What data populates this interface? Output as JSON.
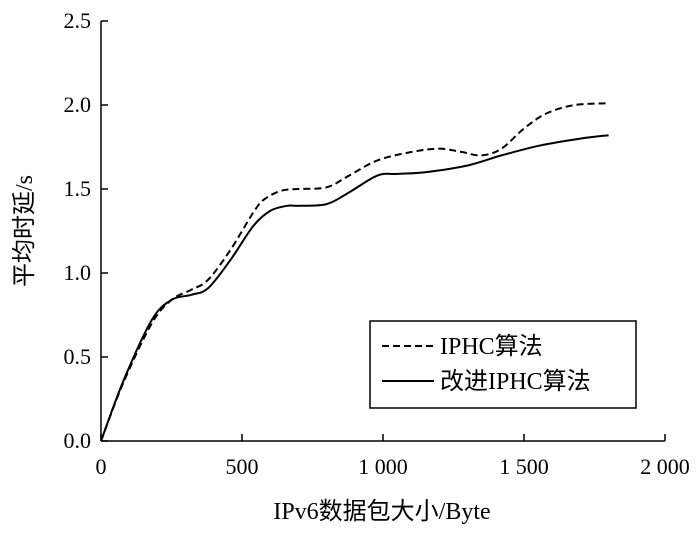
{
  "chart_data": {
    "type": "line",
    "xlabel": "IPv6数据包大小/Byte",
    "ylabel": "平均时延/s",
    "xlim": [
      0,
      2000
    ],
    "ylim": [
      0,
      2.5
    ],
    "x_ticks": [
      0,
      500,
      1000,
      1500,
      2000
    ],
    "x_tick_labels": [
      "0",
      "500",
      "1 000",
      "1 500",
      "2 000"
    ],
    "y_ticks": [
      0,
      0.5,
      1.0,
      1.5,
      2.0,
      2.5
    ],
    "y_tick_labels": [
      "0.0",
      "0.5",
      "1.0",
      "1.5",
      "2.0",
      "2.5"
    ],
    "grid": false,
    "legend_position": "bottom-right",
    "series": [
      {
        "name": "IPHC算法",
        "style": "dashed",
        "color": "#000000",
        "x": [
          0,
          80,
          180,
          250,
          320,
          380,
          460,
          540,
          580,
          640,
          700,
          800,
          880,
          980,
          1100,
          1200,
          1280,
          1350,
          1420,
          1500,
          1580,
          1680,
          1800
        ],
        "y": [
          0.0,
          0.35,
          0.7,
          0.84,
          0.9,
          0.96,
          1.14,
          1.36,
          1.44,
          1.49,
          1.5,
          1.51,
          1.58,
          1.67,
          1.72,
          1.74,
          1.72,
          1.7,
          1.74,
          1.86,
          1.95,
          2.0,
          2.01
        ]
      },
      {
        "name": "改进IPHC算法",
        "style": "solid",
        "color": "#000000",
        "x": [
          0,
          80,
          180,
          250,
          320,
          380,
          460,
          540,
          600,
          660,
          700,
          800,
          880,
          980,
          1050,
          1150,
          1300,
          1420,
          1560,
          1700,
          1800
        ],
        "y": [
          0.0,
          0.36,
          0.72,
          0.84,
          0.87,
          0.91,
          1.08,
          1.28,
          1.37,
          1.4,
          1.4,
          1.41,
          1.48,
          1.58,
          1.59,
          1.6,
          1.64,
          1.7,
          1.76,
          1.8,
          1.82
        ]
      }
    ]
  }
}
